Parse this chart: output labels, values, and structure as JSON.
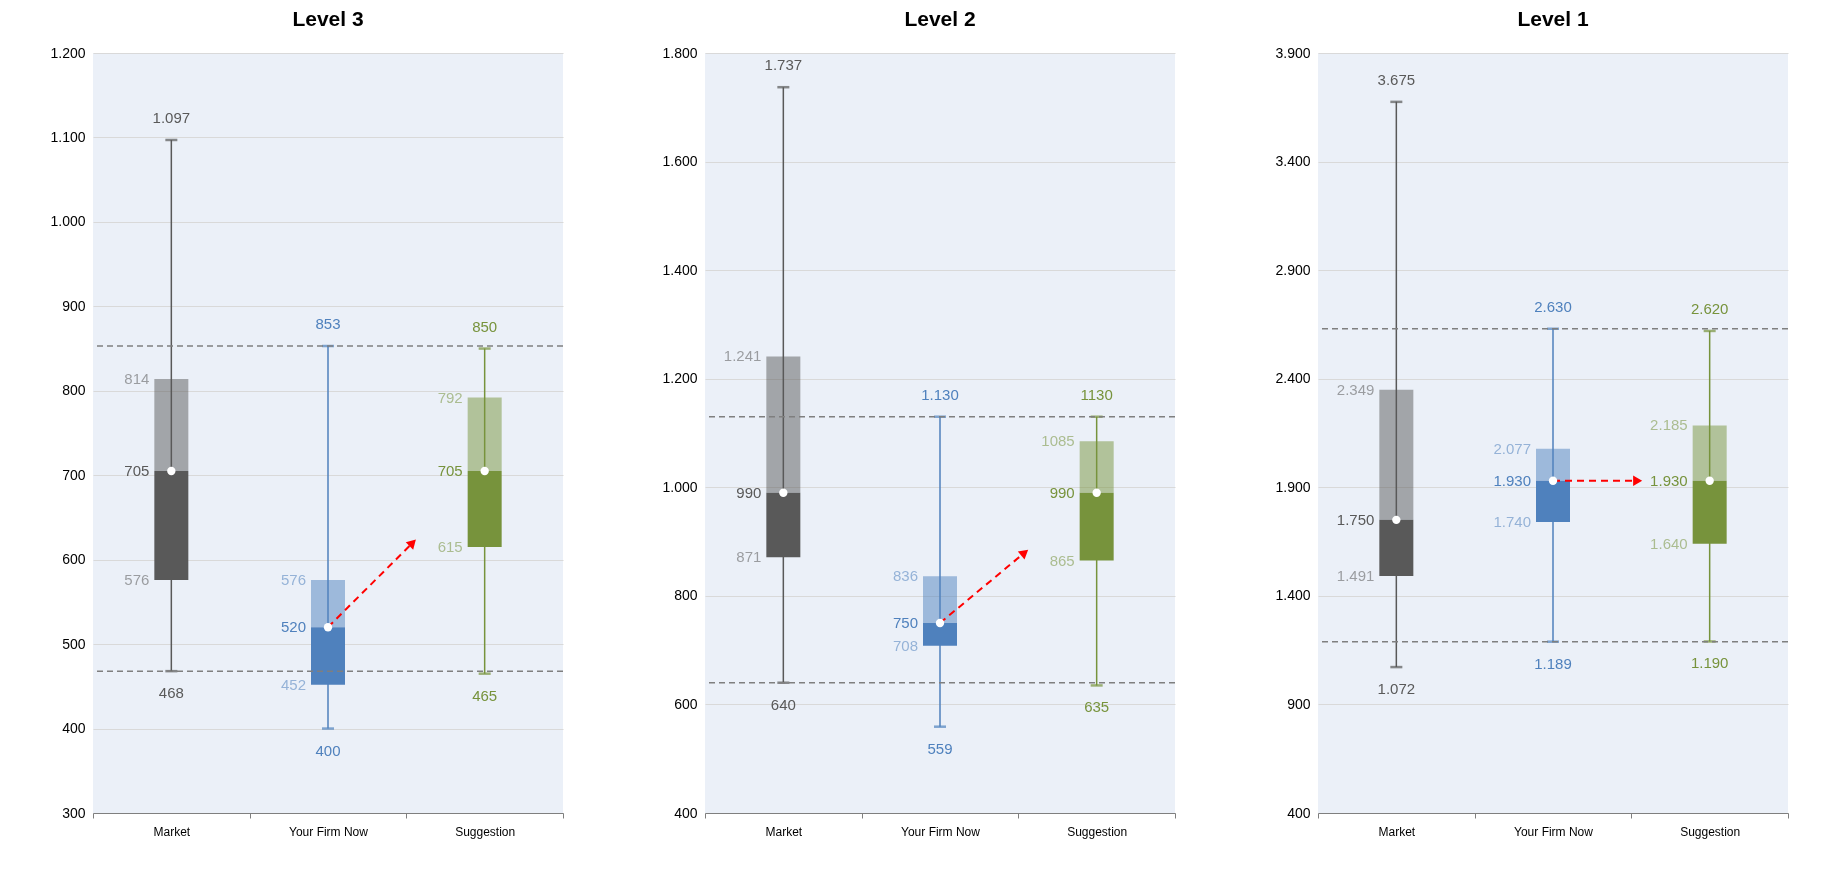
{
  "chart_data": [
    {
      "type": "box",
      "title": "Level 3",
      "categories": [
        "Market",
        "Your Firm Now",
        "Suggestion"
      ],
      "colors": [
        "#595959",
        "#4f81bd",
        "#77933c"
      ],
      "boxes": [
        {
          "low": 468,
          "q1": 576,
          "median": 705,
          "q3": 814,
          "high": 1097,
          "mean": 705
        },
        {
          "low": 400,
          "q1": 452,
          "median": 520,
          "q3": 576,
          "high": 853,
          "mean": 520
        },
        {
          "low": 465,
          "q1": 615,
          "median": 705,
          "q3": 792,
          "high": 850,
          "mean": 705
        }
      ],
      "ylim": [
        300,
        1200
      ],
      "yticks": [
        300,
        400,
        500,
        600,
        700,
        800,
        900,
        {
          "value": 1000,
          "label": "1.000"
        },
        {
          "value": 1100,
          "label": "1.100"
        },
        {
          "value": 1200,
          "label": "1.200"
        }
      ],
      "grid": "y",
      "ref_lines": [
        {
          "axis": "y",
          "value": 853,
          "color": "#7f7f7f",
          "line_style": "dashed"
        },
        {
          "axis": "y",
          "value": 468,
          "color": "#7f7f7f",
          "line_style": "dashed"
        }
      ],
      "annotations": [
        {
          "text": "1.097",
          "x": "Market",
          "y": 1097
        },
        {
          "text": "814",
          "x": "Market",
          "y": 814
        },
        {
          "text": "705",
          "x": "Market",
          "y": 705
        },
        {
          "text": "576",
          "x": "Market",
          "y": 576
        },
        {
          "text": "468",
          "x": "Market",
          "y": 468
        },
        {
          "text": "853",
          "x": "Your Firm Now",
          "y": 853
        },
        {
          "text": "576",
          "x": "Your Firm Now",
          "y": 576
        },
        {
          "text": "520",
          "x": "Your Firm Now",
          "y": 520
        },
        {
          "text": "452",
          "x": "Your Firm Now",
          "y": 452
        },
        {
          "text": "400",
          "x": "Your Firm Now",
          "y": 400
        },
        {
          "text": "850",
          "x": "Suggestion",
          "y": 850
        },
        {
          "text": "792",
          "x": "Suggestion",
          "y": 792
        },
        {
          "text": "705",
          "x": "Suggestion",
          "y": 705
        },
        {
          "text": "615",
          "x": "Suggestion",
          "y": 615
        },
        {
          "text": "465",
          "x": "Suggestion",
          "y": 465
        }
      ]
    },
    {
      "type": "box",
      "title": "Level 2",
      "categories": [
        "Market",
        "Your Firm Now",
        "Suggestion"
      ],
      "colors": [
        "#595959",
        "#4f81bd",
        "#77933c"
      ],
      "boxes": [
        {
          "low": 640,
          "q1": 871,
          "median": 990,
          "q3": 1241,
          "high": 1737,
          "mean": 990
        },
        {
          "low": 559,
          "q1": 708,
          "median": 750,
          "q3": 836,
          "high": 1130,
          "mean": 750
        },
        {
          "low": 635,
          "q1": 865,
          "median": 990,
          "q3": 1085,
          "high": 1130,
          "mean": 990
        }
      ],
      "ylim": [
        400,
        1800
      ],
      "yticks": [
        400,
        600,
        800,
        {
          "value": 1000,
          "label": "1.000"
        },
        {
          "value": 1200,
          "label": "1.200"
        },
        {
          "value": 1400,
          "label": "1.400"
        },
        {
          "value": 1600,
          "label": "1.600"
        },
        {
          "value": 1800,
          "label": "1.800"
        }
      ],
      "grid": "y",
      "ref_lines": [
        {
          "axis": "y",
          "value": 1130,
          "color": "#7f7f7f",
          "line_style": "dashed"
        },
        {
          "axis": "y",
          "value": 640,
          "color": "#7f7f7f",
          "line_style": "dashed"
        }
      ],
      "annotations": [
        {
          "text": "1.737",
          "x": "Market",
          "y": 1737
        },
        {
          "text": "1.241",
          "x": "Market",
          "y": 1241
        },
        {
          "text": "990",
          "x": "Market",
          "y": 990
        },
        {
          "text": "871",
          "x": "Market",
          "y": 871
        },
        {
          "text": "640",
          "x": "Market",
          "y": 640
        },
        {
          "text": "1.130",
          "x": "Your Firm Now",
          "y": 1130
        },
        {
          "text": "836",
          "x": "Your Firm Now",
          "y": 836
        },
        {
          "text": "750",
          "x": "Your Firm Now",
          "y": 750
        },
        {
          "text": "708",
          "x": "Your Firm Now",
          "y": 708
        },
        {
          "text": "559",
          "x": "Your Firm Now",
          "y": 559
        },
        {
          "text": "1130",
          "x": "Suggestion",
          "y": 1130
        },
        {
          "text": "1085",
          "x": "Suggestion",
          "y": 1085
        },
        {
          "text": "990",
          "x": "Suggestion",
          "y": 990
        },
        {
          "text": "865",
          "x": "Suggestion",
          "y": 865
        },
        {
          "text": "635",
          "x": "Suggestion",
          "y": 635
        }
      ]
    },
    {
      "type": "box",
      "title": "Level 1",
      "categories": [
        "Market",
        "Your Firm Now",
        "Suggestion"
      ],
      "colors": [
        "#595959",
        "#4f81bd",
        "#77933c"
      ],
      "boxes": [
        {
          "low": 1072,
          "q1": 1491,
          "median": 1750,
          "q3": 2349,
          "high": 3675,
          "mean": 1750
        },
        {
          "low": 1189,
          "q1": 1740,
          "median": 1930,
          "q3": 2077,
          "high": 2630,
          "mean": 1930
        },
        {
          "low": 1190,
          "q1": 1640,
          "median": 1930,
          "q3": 2185,
          "high": 2620,
          "mean": 1930
        }
      ],
      "ylim": [
        400,
        3900
      ],
      "yticks": [
        400,
        900,
        {
          "value": 1400,
          "label": "1.400"
        },
        {
          "value": 1900,
          "label": "1.900"
        },
        {
          "value": 2400,
          "label": "2.400"
        },
        {
          "value": 2900,
          "label": "2.900"
        },
        {
          "value": 3400,
          "label": "3.400"
        },
        {
          "value": 3900,
          "label": "3.900"
        }
      ],
      "grid": "y",
      "ref_lines": [
        {
          "axis": "y",
          "value": 2630,
          "color": "#7f7f7f",
          "line_style": "dashed"
        },
        {
          "axis": "y",
          "value": 1189,
          "color": "#7f7f7f",
          "line_style": "dashed"
        }
      ],
      "annotations": [
        {
          "text": "3.675",
          "x": "Market",
          "y": 3675
        },
        {
          "text": "2.349",
          "x": "Market",
          "y": 2349
        },
        {
          "text": "1.750",
          "x": "Market",
          "y": 1750
        },
        {
          "text": "1.491",
          "x": "Market",
          "y": 1491
        },
        {
          "text": "1.072",
          "x": "Market",
          "y": 1072
        },
        {
          "text": "2.630",
          "x": "Your Firm Now",
          "y": 2630
        },
        {
          "text": "2.077",
          "x": "Your Firm Now",
          "y": 2077
        },
        {
          "text": "1.930",
          "x": "Your Firm Now",
          "y": 1930
        },
        {
          "text": "1.740",
          "x": "Your Firm Now",
          "y": 1740
        },
        {
          "text": "1.189",
          "x": "Your Firm Now",
          "y": 1189
        },
        {
          "text": "2.620",
          "x": "Suggestion",
          "y": 2620
        },
        {
          "text": "2.185",
          "x": "Suggestion",
          "y": 2185
        },
        {
          "text": "1.930",
          "x": "Suggestion",
          "y": 1930
        },
        {
          "text": "1.640",
          "x": "Suggestion",
          "y": 1640
        },
        {
          "text": "1.190",
          "x": "Suggestion",
          "y": 1190
        }
      ]
    }
  ]
}
